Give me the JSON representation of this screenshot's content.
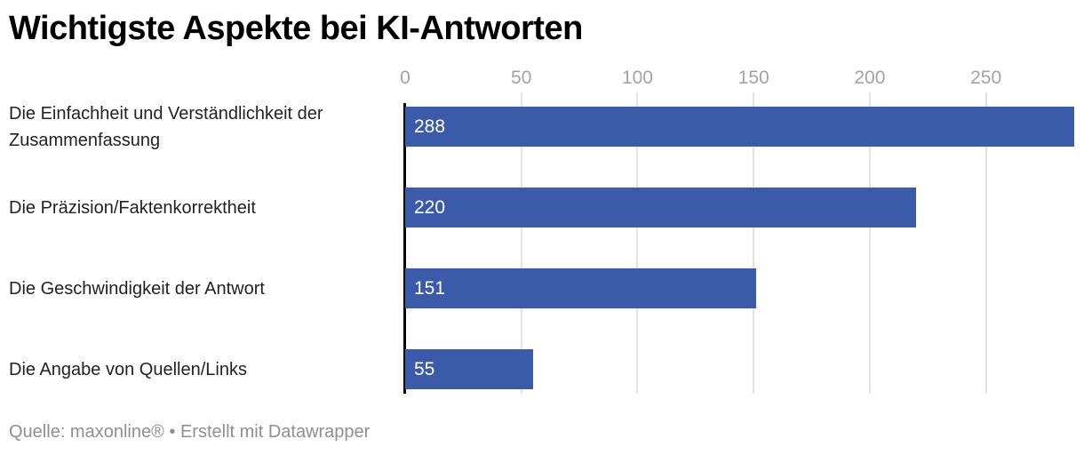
{
  "header": {
    "title": "Wichtigste Aspekte bei KI-Antworten"
  },
  "chart_data": {
    "type": "bar",
    "orientation": "horizontal",
    "title": "Wichtigste Aspekte bei KI-Antworten",
    "categories": [
      "Die Einfachheit und Verständlichkeit der Zusammenfassung",
      "Die Präzision/Faktenkorrektheit",
      "Die Geschwindigkeit der Antwort",
      "Die Angabe von Quellen/Links"
    ],
    "values": [
      288,
      220,
      151,
      55
    ],
    "value_labels": [
      "288",
      "220",
      "151",
      "55"
    ],
    "x_ticks": [
      0,
      50,
      100,
      150,
      200,
      250
    ],
    "x_tick_labels": [
      "0",
      "50",
      "100",
      "150",
      "200",
      "250"
    ],
    "xlim": [
      0,
      288
    ],
    "xlabel": "",
    "ylabel": "",
    "grid": "vertical-only",
    "legend": "none"
  },
  "footer": {
    "text": "Quelle: maxonline® • Erstellt mit Datawrapper"
  },
  "colors": {
    "bar": "#3b5ba9",
    "value_label": "#ffffff",
    "tick_label": "#a3a3a3",
    "grid_line": "#e3e3e3",
    "zero_axis": "#000000",
    "category_label": "#222222",
    "title": "#000000",
    "footer_text": "#8f8f8f",
    "background": "#ffffff"
  }
}
